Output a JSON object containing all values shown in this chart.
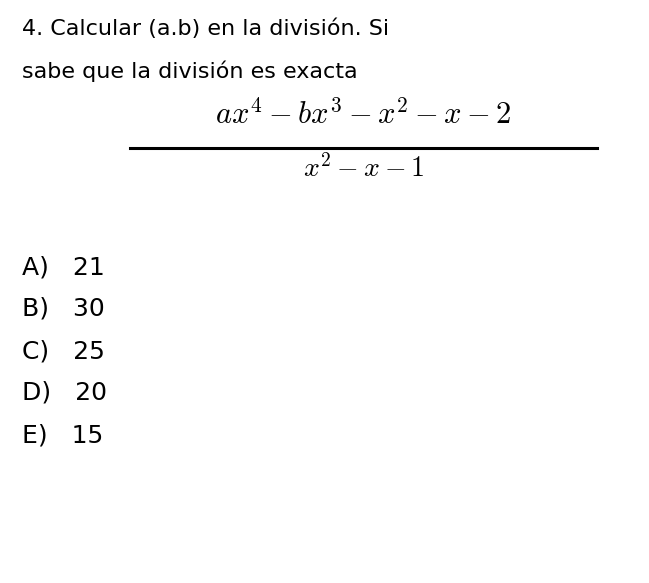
{
  "background_color": "#ffffff",
  "title_line1": "4. Calcular (a.b) en la división. Si",
  "title_line2": "sabe que la división es exacta",
  "numerator": "$ax^4 - bx^3 - x^2 - x - 2$",
  "denominator": "$x^2 - x - 1$",
  "options": [
    "A)   21",
    "B)   30",
    "C)   25",
    "D)   20",
    "E)   15"
  ],
  "title_fontsize": 16,
  "formula_fontsize_num": 22,
  "formula_fontsize_den": 20,
  "options_fontsize": 18,
  "text_color": "#000000",
  "fig_width": 6.49,
  "fig_height": 5.83,
  "dpi": 100
}
